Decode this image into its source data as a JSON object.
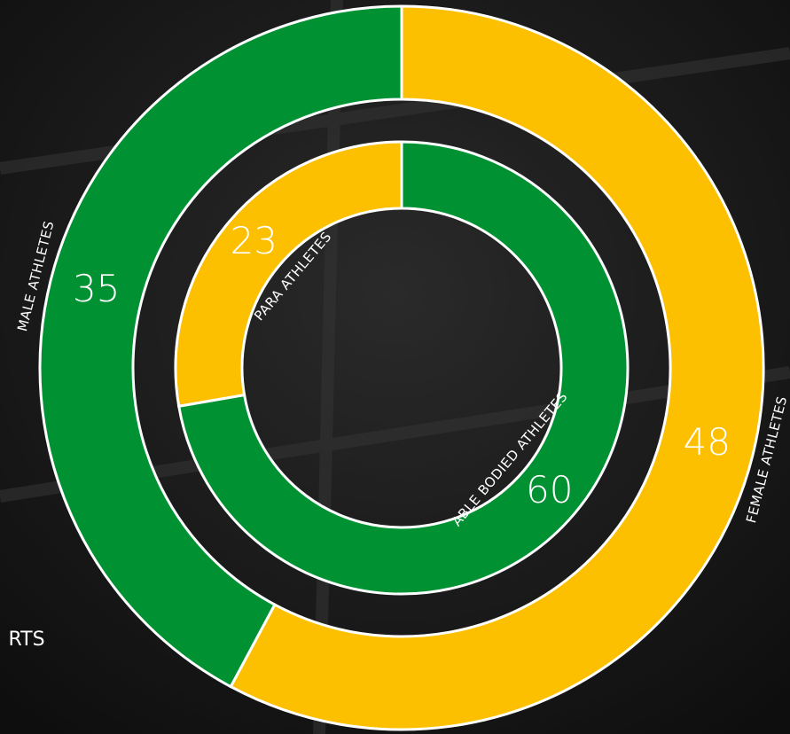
{
  "chart_data": {
    "type": "nested-donut",
    "side_text": "RTS",
    "rings": [
      {
        "segments": [
          {
            "name": "FEMALE ATHLETES",
            "value": 48,
            "color": "#fcc000"
          },
          {
            "name": "MALE ATHLETES",
            "value": 35,
            "color": "#009133"
          }
        ]
      },
      {
        "segments": [
          {
            "name": "ABLE BODIED ATHLETES",
            "value": 60,
            "color": "#009133"
          },
          {
            "name": "PARA ATHLETES",
            "value": 23,
            "color": "#fcc000"
          }
        ]
      }
    ]
  }
}
